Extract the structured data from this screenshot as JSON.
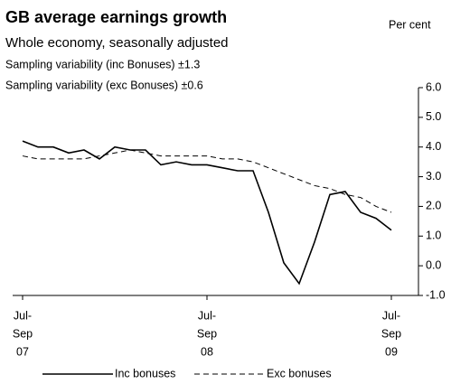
{
  "chart_data": {
    "type": "line",
    "title": "GB average earnings growth",
    "subtitle": "Whole economy, seasonally adjusted",
    "annotations": [
      "Sampling variability (inc Bonuses) ±1.3",
      "Sampling variability (exc Bonuses) ±0.6"
    ],
    "y_label": "Per cent",
    "categories": [
      [
        "Jul-",
        "Sep",
        "07"
      ],
      null,
      null,
      null,
      null,
      null,
      null,
      null,
      null,
      null,
      null,
      null,
      [
        "Jul-",
        "Sep",
        "08"
      ],
      null,
      null,
      null,
      null,
      null,
      null,
      null,
      null,
      null,
      null,
      null,
      [
        "Jul-",
        "Sep",
        "09"
      ]
    ],
    "series": [
      {
        "name": "Inc bonuses",
        "color": "#000000",
        "dash": false,
        "values": [
          4.2,
          4.0,
          4.0,
          3.8,
          3.9,
          3.6,
          4.0,
          3.9,
          3.9,
          3.4,
          3.5,
          3.4,
          3.4,
          3.3,
          3.2,
          3.2,
          1.8,
          0.1,
          -0.6,
          0.8,
          2.4,
          2.5,
          1.8,
          1.6,
          1.2
        ]
      },
      {
        "name": "Exc bonuses",
        "color": "#000000",
        "dash": true,
        "values": [
          3.7,
          3.6,
          3.6,
          3.6,
          3.6,
          3.7,
          3.8,
          3.9,
          3.8,
          3.7,
          3.7,
          3.7,
          3.7,
          3.6,
          3.6,
          3.5,
          3.3,
          3.1,
          2.9,
          2.7,
          2.6,
          2.4,
          2.3,
          2.0,
          1.8
        ]
      }
    ],
    "ylim": [
      -1,
      6
    ],
    "yticks": [
      {
        "value": -1,
        "label": "-1.0"
      },
      {
        "value": 0,
        "label": "0.0"
      },
      {
        "value": 1,
        "label": "1.0"
      },
      {
        "value": 2,
        "label": "2.0"
      },
      {
        "value": 3,
        "label": "3.0"
      },
      {
        "value": 4,
        "label": "4.0"
      },
      {
        "value": 5,
        "label": "5.0"
      },
      {
        "value": 6,
        "label": "6.0"
      }
    ]
  }
}
